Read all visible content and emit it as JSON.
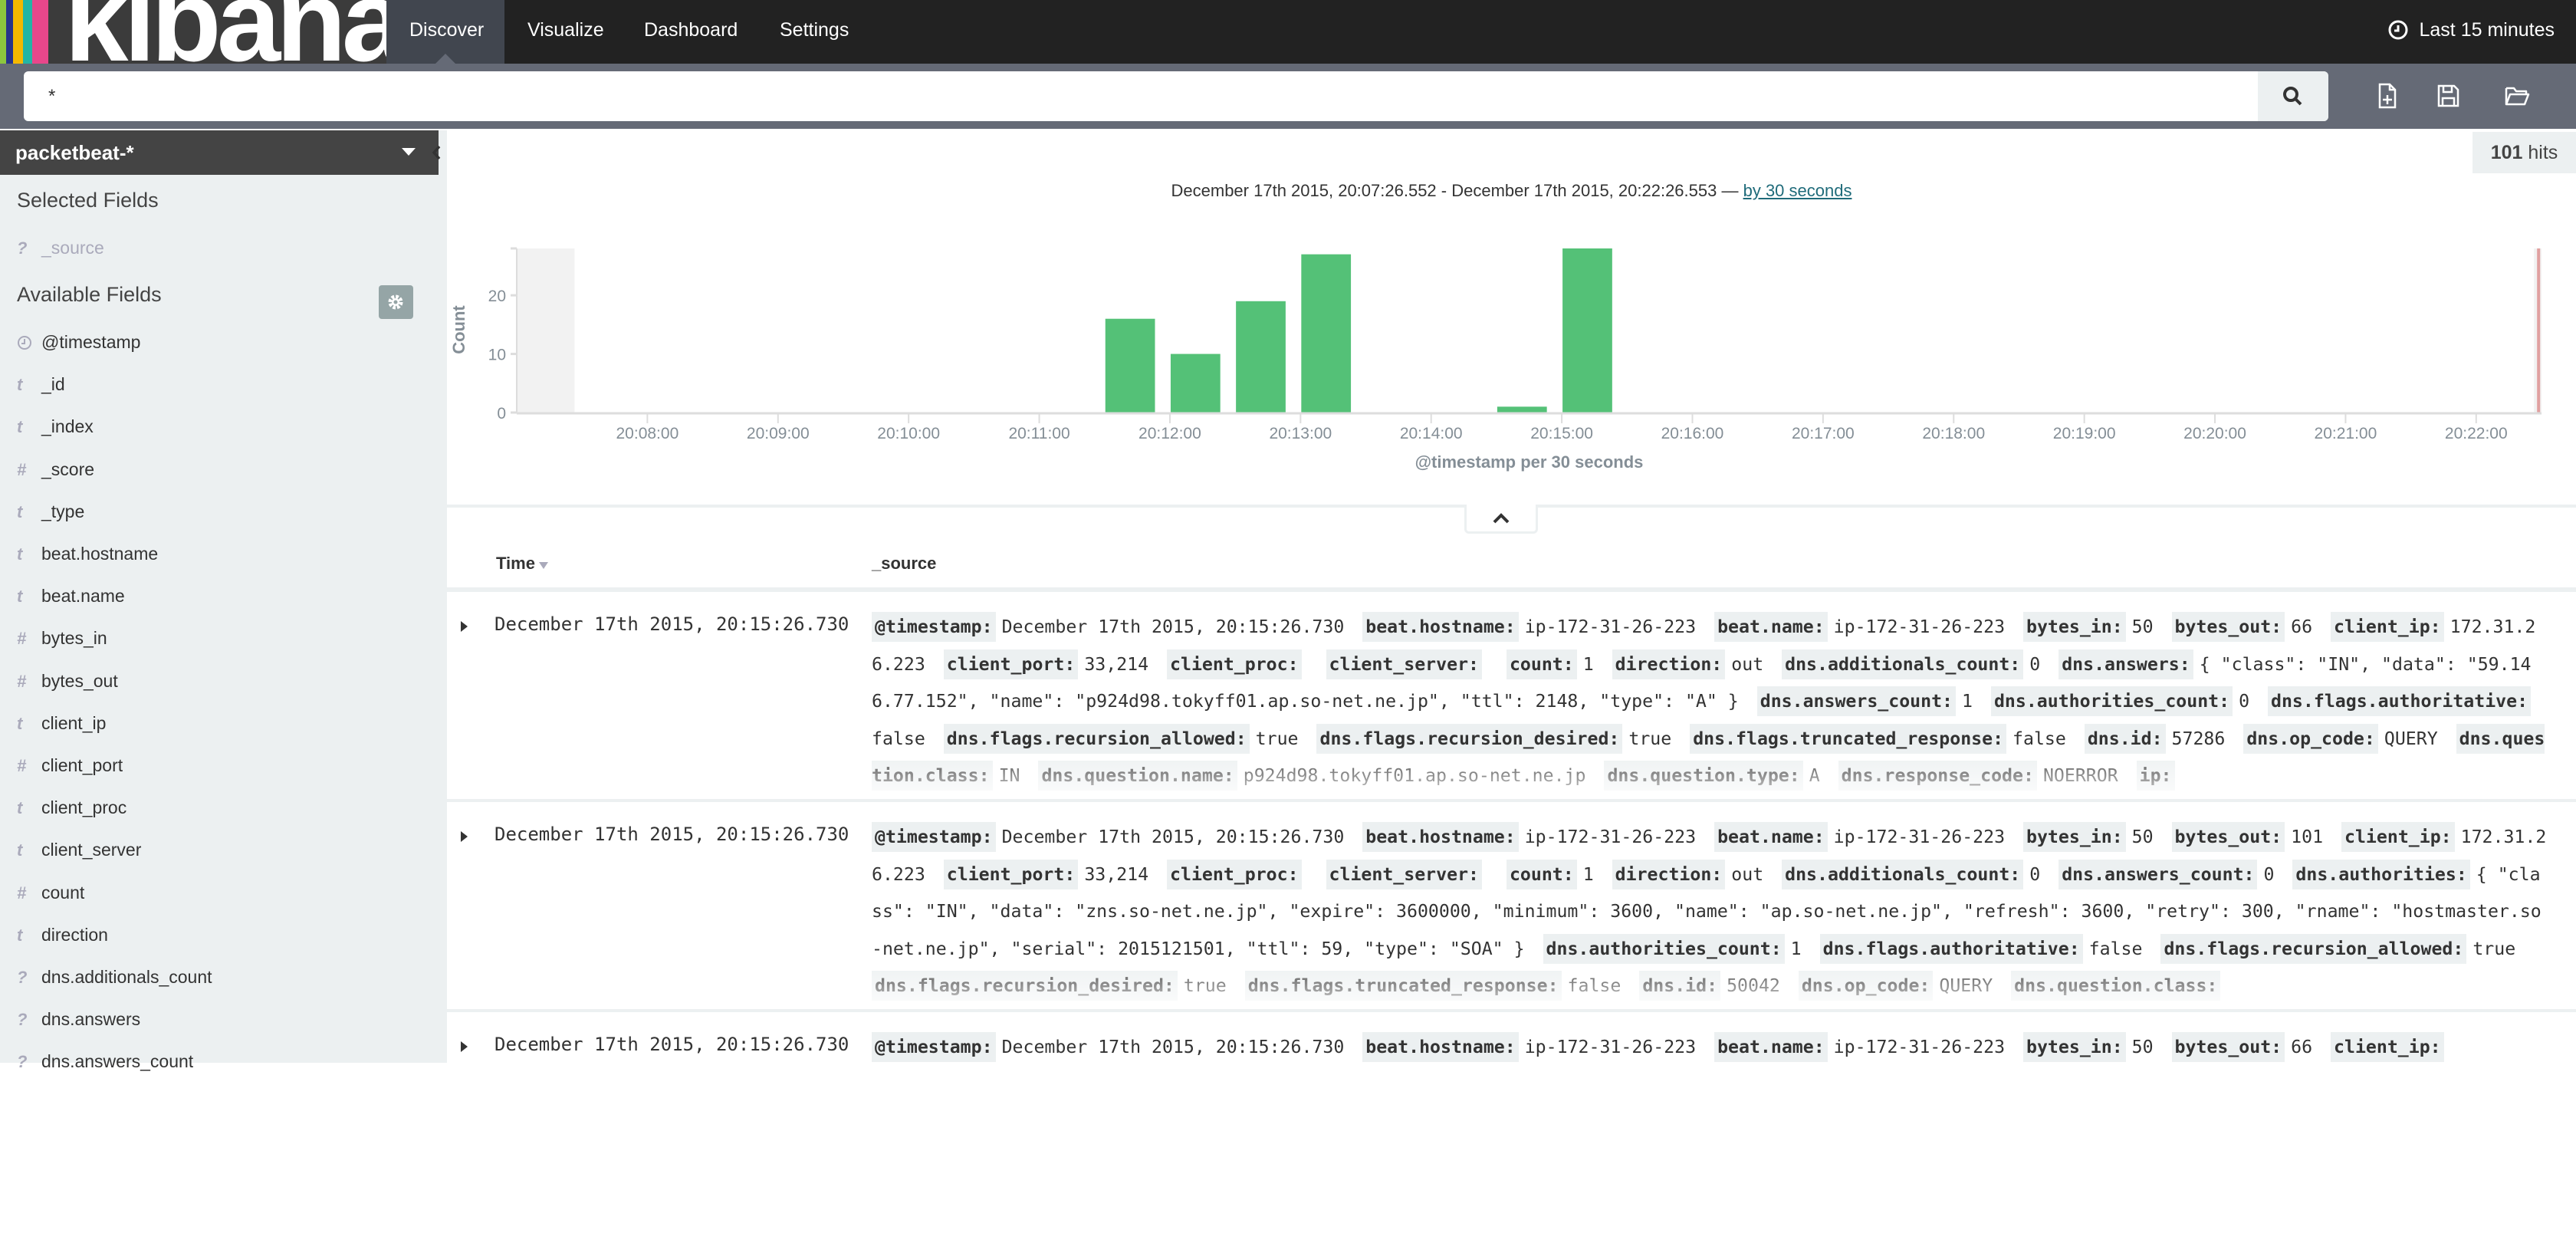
{
  "nav": {
    "logo_text": "kibana",
    "logo_colors": [
      "#8cc63f",
      "#27348b",
      "#f5b800",
      "#23b5a5",
      "#e8478b"
    ],
    "tabs": [
      {
        "label": "Discover",
        "active": true
      },
      {
        "label": "Visualize",
        "active": false
      },
      {
        "label": "Dashboard",
        "active": false
      },
      {
        "label": "Settings",
        "active": false
      }
    ],
    "time_picker": {
      "icon": "clock-icon",
      "label": "Last 15 minutes"
    }
  },
  "search": {
    "value": "*",
    "button_icon": "search-icon",
    "toolbar_icons": [
      "new-document-icon",
      "save-icon",
      "open-folder-icon"
    ]
  },
  "sidebar": {
    "index_pattern": "packetbeat-*",
    "selected_fields_title": "Selected Fields",
    "selected_fields": [
      {
        "type": "?",
        "name": "_source"
      }
    ],
    "available_fields_title": "Available Fields",
    "available_fields": [
      {
        "type": "clock",
        "name": "@timestamp"
      },
      {
        "type": "t",
        "name": "_id"
      },
      {
        "type": "t",
        "name": "_index"
      },
      {
        "type": "#",
        "name": "_score"
      },
      {
        "type": "t",
        "name": "_type"
      },
      {
        "type": "t",
        "name": "beat.hostname"
      },
      {
        "type": "t",
        "name": "beat.name"
      },
      {
        "type": "#",
        "name": "bytes_in"
      },
      {
        "type": "#",
        "name": "bytes_out"
      },
      {
        "type": "t",
        "name": "client_ip"
      },
      {
        "type": "#",
        "name": "client_port"
      },
      {
        "type": "t",
        "name": "client_proc"
      },
      {
        "type": "t",
        "name": "client_server"
      },
      {
        "type": "#",
        "name": "count"
      },
      {
        "type": "t",
        "name": "direction"
      },
      {
        "type": "?",
        "name": "dns.additionals_count"
      },
      {
        "type": "?",
        "name": "dns.answers"
      },
      {
        "type": "?",
        "name": "dns.answers_count"
      }
    ]
  },
  "hits": {
    "count": "101",
    "label": "hits"
  },
  "chart_header": {
    "range": "December 17th 2015, 20:07:26.552 - December 17th 2015, 20:22:26.553 — ",
    "interval_link": "by 30 seconds"
  },
  "chart_data": {
    "type": "bar",
    "xlabel": "@timestamp per 30 seconds",
    "ylabel": "Count",
    "x_domain": [
      "20:07:00",
      "20:22:30"
    ],
    "ylim": [
      0,
      28
    ],
    "yticks": [
      0,
      10,
      20
    ],
    "xticks": [
      "20:08:00",
      "20:09:00",
      "20:10:00",
      "20:11:00",
      "20:12:00",
      "20:13:00",
      "20:14:00",
      "20:15:00",
      "20:16:00",
      "20:17:00",
      "20:18:00",
      "20:19:00",
      "20:20:00",
      "20:21:00",
      "20:22:00"
    ],
    "interval_seconds": 30,
    "time_range": [
      "20:07:26.552",
      "20:22:26.553"
    ],
    "bars": [
      {
        "x": "20:11:30",
        "value": 16
      },
      {
        "x": "20:12:00",
        "value": 10
      },
      {
        "x": "20:12:30",
        "value": 19
      },
      {
        "x": "20:13:00",
        "value": 27
      },
      {
        "x": "20:14:30",
        "value": 1
      },
      {
        "x": "20:15:00",
        "value": 28
      }
    ],
    "bar_color": "#54c177",
    "out_of_range_color": "#f2f2f2",
    "now_marker_color": "#e0a0a0",
    "grid": false
  },
  "table": {
    "columns": [
      "Time",
      "_source"
    ],
    "rows": [
      {
        "time": "December 17th 2015, 20:15:26.730",
        "source": [
          [
            "@timestamp:",
            "December 17th 2015, 20:15:26.730"
          ],
          [
            "beat.hostname:",
            "ip-172-31-26-223"
          ],
          [
            "beat.name:",
            "ip-172-31-26-223"
          ],
          [
            "bytes_in:",
            "50"
          ],
          [
            "bytes_out:",
            "66"
          ],
          [
            "client_ip:",
            "172.31.26.223"
          ],
          [
            "client_port:",
            "33,214"
          ],
          [
            "client_proc:",
            ""
          ],
          [
            "client_server:",
            ""
          ],
          [
            "count:",
            "1"
          ],
          [
            "direction:",
            "out"
          ],
          [
            "dns.additionals_count:",
            "0"
          ],
          [
            "dns.answers:",
            "{ \"class\": \"IN\", \"data\": \"59.146.77.152\", \"name\": \"p924d98.tokyff01.ap.so-net.ne.jp\", \"ttl\": 2148, \"type\": \"A\" }"
          ],
          [
            "dns.answers_count:",
            "1"
          ],
          [
            "dns.authorities_count:",
            "0"
          ],
          [
            "dns.flags.authoritative:",
            "false"
          ],
          [
            "dns.flags.recursion_allowed:",
            "true"
          ],
          [
            "dns.flags.recursion_desired:",
            "true"
          ],
          [
            "dns.flags.truncated_response:",
            "false"
          ],
          [
            "dns.id:",
            "57286"
          ],
          [
            "dns.op_code:",
            "QUERY"
          ],
          [
            "dns.question.class:",
            "IN"
          ],
          [
            "dns.question.name:",
            "p924d98.tokyff01.ap.so-net.ne.jp"
          ],
          [
            "dns.question.type:",
            "A"
          ],
          [
            "dns.response_code:",
            "NOERROR"
          ],
          [
            "ip:",
            ""
          ]
        ]
      },
      {
        "time": "December 17th 2015, 20:15:26.730",
        "source": [
          [
            "@timestamp:",
            "December 17th 2015, 20:15:26.730"
          ],
          [
            "beat.hostname:",
            "ip-172-31-26-223"
          ],
          [
            "beat.name:",
            "ip-172-31-26-223"
          ],
          [
            "bytes_in:",
            "50"
          ],
          [
            "bytes_out:",
            "101"
          ],
          [
            "client_ip:",
            "172.31.26.223"
          ],
          [
            "client_port:",
            "33,214"
          ],
          [
            "client_proc:",
            ""
          ],
          [
            "client_server:",
            ""
          ],
          [
            "count:",
            "1"
          ],
          [
            "direction:",
            "out"
          ],
          [
            "dns.additionals_count:",
            "0"
          ],
          [
            "dns.answers_count:",
            "0"
          ],
          [
            "dns.authorities:",
            "{ \"class\": \"IN\", \"data\": \"zns.so-net.ne.jp\", \"expire\": 3600000, \"minimum\": 3600, \"name\": \"ap.so-net.ne.jp\", \"refresh\": 3600, \"retry\": 300, \"rname\": \"hostmaster.so-net.ne.jp\", \"serial\": 2015121501, \"ttl\": 59, \"type\": \"SOA\" }"
          ],
          [
            "dns.authorities_count:",
            "1"
          ],
          [
            "dns.flags.authoritative:",
            "false"
          ],
          [
            "dns.flags.recursion_allowed:",
            "true"
          ],
          [
            "dns.flags.recursion_desired:",
            "true"
          ],
          [
            "dns.flags.truncated_response:",
            "false"
          ],
          [
            "dns.id:",
            "50042"
          ],
          [
            "dns.op_code:",
            "QUERY"
          ],
          [
            "dns.question.class:",
            ""
          ]
        ]
      },
      {
        "time": "December 17th 2015, 20:15:26.730",
        "source": [
          [
            "@timestamp:",
            "December 17th 2015, 20:15:26.730"
          ],
          [
            "beat.hostname:",
            "ip-172-31-26-223"
          ],
          [
            "beat.name:",
            "ip-172-31-26-223"
          ],
          [
            "bytes_in:",
            "50"
          ],
          [
            "bytes_out:",
            "66"
          ],
          [
            "client_ip:",
            ""
          ]
        ]
      }
    ]
  }
}
